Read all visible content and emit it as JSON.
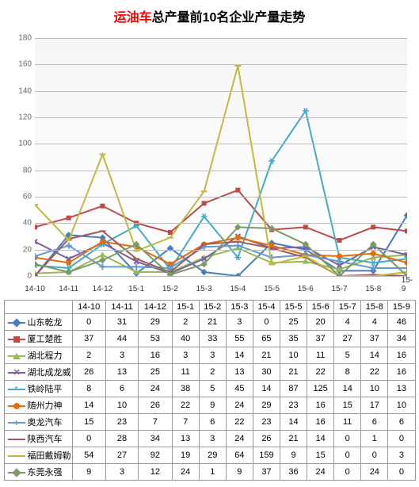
{
  "title": {
    "red": "运油车",
    "black": "总产量前10名企业产量走势"
  },
  "chart": {
    "type": "line",
    "ylim": [
      0,
      180
    ],
    "ytick_step": 20,
    "background_gradient": [
      "#f5f5f5",
      "#ffffff"
    ],
    "grid_color": "#bbbbbb",
    "categories": [
      "14-10",
      "14-11",
      "14-12",
      "15-1",
      "15-2",
      "15-3",
      "15-4",
      "15-5",
      "15-6",
      "15-7",
      "15-8",
      "15-9"
    ],
    "series": [
      {
        "name": "山东乾龙",
        "color": "#4a7ebb",
        "marker": "diamond",
        "values": [
          0,
          31,
          29,
          2,
          21,
          3,
          0,
          25,
          20,
          4,
          4,
          46
        ]
      },
      {
        "name": "厦工楚胜",
        "color": "#be4b48",
        "marker": "square",
        "values": [
          37,
          44,
          53,
          40,
          33,
          55,
          65,
          35,
          37,
          27,
          37,
          34
        ]
      },
      {
        "name": "湖北程力",
        "color": "#98b954",
        "marker": "triangle",
        "values": [
          2,
          3,
          16,
          3,
          3,
          14,
          21,
          10,
          11,
          5,
          14,
          16
        ]
      },
      {
        "name": "湖北成龙威",
        "color": "#7d60a0",
        "marker": "x",
        "values": [
          26,
          13,
          25,
          11,
          2,
          13,
          30,
          21,
          22,
          8,
          22,
          16
        ]
      },
      {
        "name": "铁岭陆平",
        "color": "#46aac5",
        "marker": "star",
        "values": [
          8,
          6,
          24,
          38,
          5,
          45,
          14,
          87,
          125,
          14,
          10,
          13
        ]
      },
      {
        "name": "随州力神",
        "color": "#e46c0a",
        "marker": "circle",
        "values": [
          14,
          10,
          26,
          22,
          9,
          24,
          29,
          23,
          16,
          15,
          17,
          10
        ]
      },
      {
        "name": "奥龙汽车",
        "color": "#6699cc",
        "marker": "plus",
        "values": [
          15,
          23,
          7,
          7,
          6,
          22,
          23,
          14,
          16,
          11,
          6,
          6
        ]
      },
      {
        "name": "陕西汽车",
        "color": "#a05c5c",
        "marker": "dash",
        "values": [
          0,
          28,
          34,
          13,
          3,
          24,
          26,
          21,
          14,
          0,
          1,
          0
        ]
      },
      {
        "name": "福田戴姆勒",
        "color": "#c2b93e",
        "marker": "dash",
        "values": [
          54,
          27,
          92,
          19,
          29,
          64,
          159,
          9,
          15,
          0,
          0,
          3
        ]
      },
      {
        "name": "东莞永强",
        "color": "#7a9a6a",
        "marker": "diamond",
        "values": [
          9,
          3,
          12,
          24,
          1,
          9,
          37,
          36,
          24,
          0,
          24,
          0
        ]
      }
    ]
  },
  "table_font_size": 11
}
